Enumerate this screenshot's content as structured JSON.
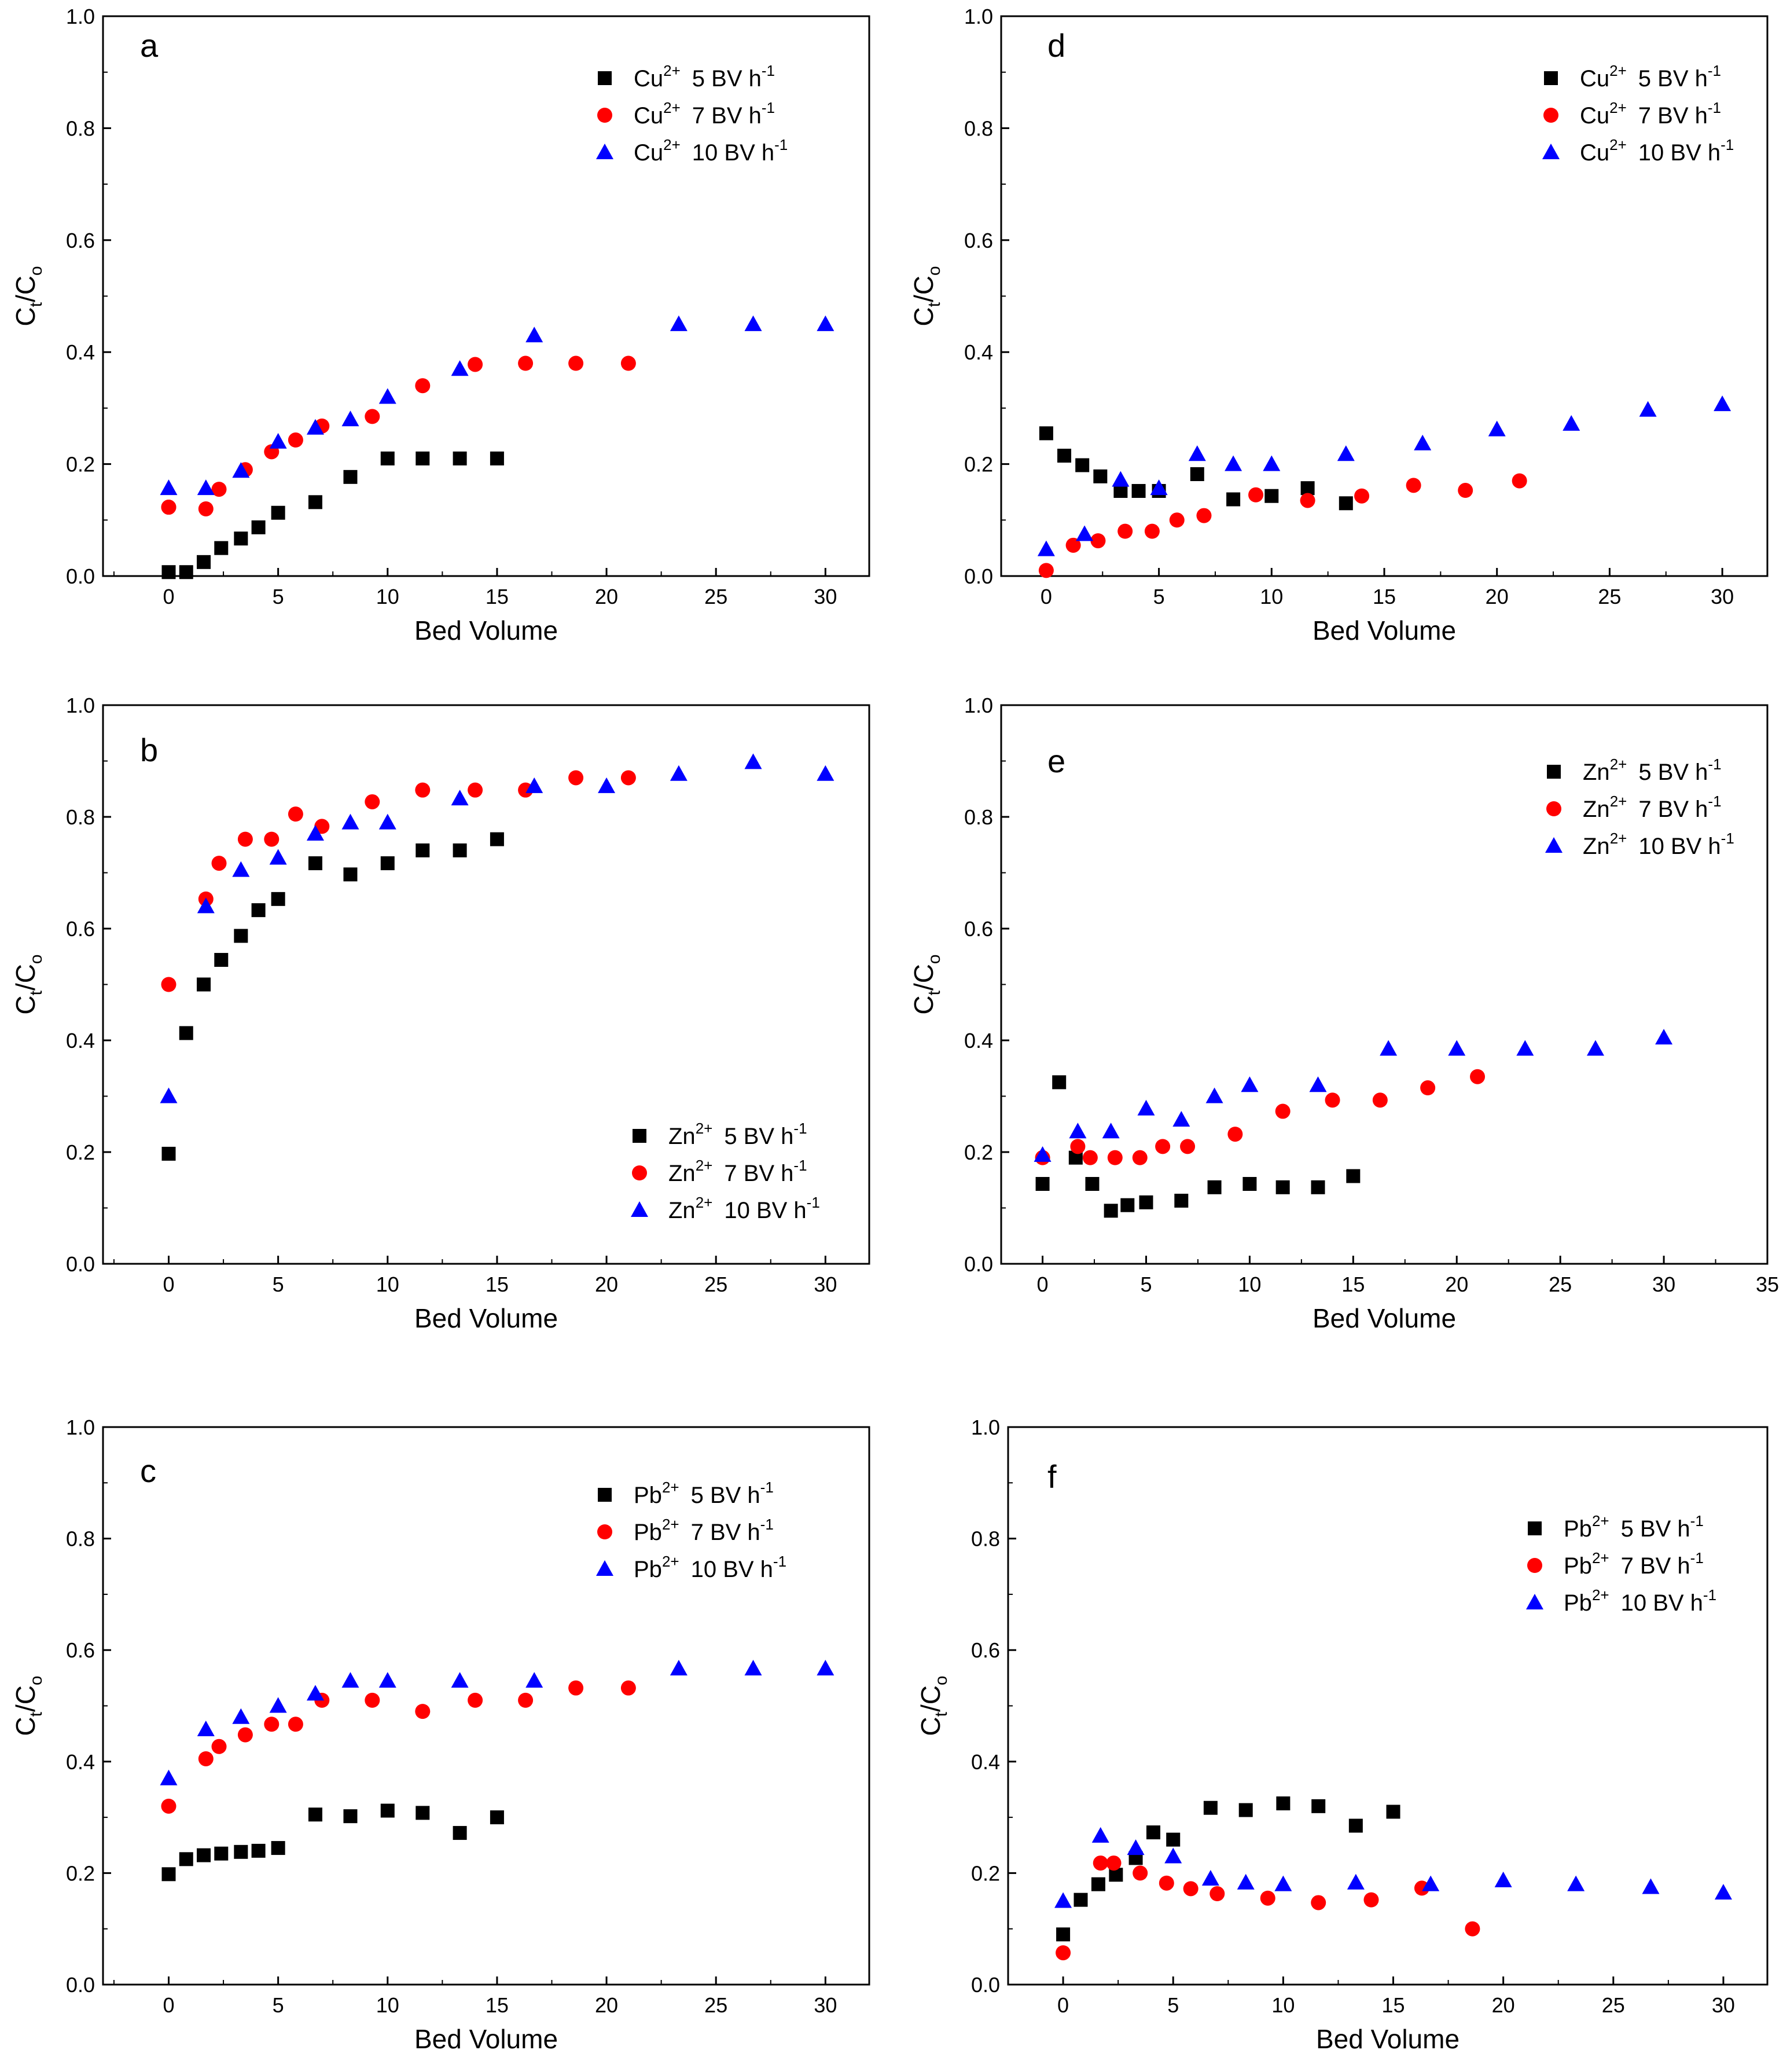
{
  "figure": {
    "ylabel": "Ct/Co",
    "ylabel_main": "C",
    "ylabel_sub_t": "t",
    "ylabel_slash": "/C",
    "ylabel_sub_o": "o",
    "xlabel": "Bed Volume"
  },
  "colors": {
    "5": "#000000",
    "7": "#ff0000",
    "10": "#0000ff"
  },
  "chart_data": [
    {
      "type": "scatter",
      "label": "a",
      "xlabel": "Bed Volume",
      "ylabel": "Ct/Co",
      "xlim": [
        -3,
        32
      ],
      "ylim": [
        0,
        1.0
      ],
      "xticks": [
        "0",
        "5",
        "10",
        "15",
        "20",
        "25",
        "30"
      ],
      "yticks": [
        "0.0",
        "0.2",
        "0.4",
        "0.6",
        "0.8",
        "1.0"
      ],
      "legend_position": "top-right",
      "series": [
        {
          "name": "Cu2+ 5 BV h-1",
          "ion": "Cu",
          "rate": "5",
          "marker": "square",
          "x": [
            0,
            0.8,
            1.6,
            2.4,
            3.3,
            4.1,
            5,
            6.7,
            8.3,
            10,
            11.6,
            13.3,
            15
          ],
          "y": [
            0.007,
            0.007,
            0.025,
            0.05,
            0.067,
            0.087,
            0.113,
            0.132,
            0.177,
            0.21,
            0.21,
            0.21,
            0.21
          ]
        },
        {
          "name": "Cu2+ 7 BV h-1",
          "ion": "Cu",
          "rate": "7",
          "marker": "circle",
          "x": [
            0,
            0,
            1.7,
            2.3,
            3.5,
            4.7,
            5.8,
            7,
            9.3,
            11.6,
            14,
            16.3,
            18.6,
            21
          ],
          "y": [
            0.123,
            0.123,
            0.12,
            0.155,
            0.19,
            0.222,
            0.243,
            0.268,
            0.285,
            0.34,
            0.378,
            0.38,
            0.38,
            0.38
          ]
        },
        {
          "name": "Cu2+ 10 BV h-1",
          "ion": "Cu",
          "rate": "10",
          "marker": "triangle",
          "x": [
            0,
            1.7,
            3.3,
            5,
            6.7,
            8.3,
            10,
            13.3,
            16.7,
            23.3,
            26.7,
            30
          ],
          "y": [
            0.157,
            0.157,
            0.188,
            0.24,
            0.265,
            0.28,
            0.32,
            0.37,
            0.43,
            0.45,
            0.45,
            0.45
          ]
        }
      ],
      "legend": [
        "5  BV h",
        "7  BV h",
        "10 BV h"
      ]
    },
    {
      "type": "scatter",
      "label": "b",
      "xlabel": "Bed Volume",
      "ylabel": "Ct/Co",
      "xlim": [
        -3,
        32
      ],
      "ylim": [
        0,
        1.0
      ],
      "xticks": [
        "0",
        "5",
        "10",
        "15",
        "20",
        "25",
        "30"
      ],
      "yticks": [
        "0.0",
        "0.2",
        "0.4",
        "0.6",
        "0.8",
        "1.0"
      ],
      "legend_position": "bottom-right",
      "series": [
        {
          "name": "Zn2+ 5 BV h-1",
          "ion": "Zn",
          "rate": "5",
          "marker": "square",
          "x": [
            0,
            0.8,
            1.6,
            2.4,
            3.3,
            4.1,
            5,
            6.7,
            8.3,
            10,
            11.6,
            13.3,
            15
          ],
          "y": [
            0.197,
            0.413,
            0.5,
            0.544,
            0.587,
            0.633,
            0.653,
            0.717,
            0.697,
            0.717,
            0.74,
            0.74,
            0.76
          ]
        },
        {
          "name": "Zn2+ 7 BV h-1",
          "ion": "Zn",
          "rate": "7",
          "marker": "circle",
          "x": [
            0,
            1.7,
            2.3,
            3.5,
            4.7,
            5.8,
            7,
            9.3,
            11.6,
            14,
            16.3,
            18.6,
            21
          ],
          "y": [
            0.5,
            0.653,
            0.717,
            0.76,
            0.76,
            0.805,
            0.783,
            0.827,
            0.848,
            0.848,
            0.848,
            0.87,
            0.87
          ]
        },
        {
          "name": "Zn2+ 10 BV h-1",
          "ion": "Zn",
          "rate": "10",
          "marker": "triangle",
          "x": [
            0,
            1.7,
            3.3,
            5,
            6.7,
            8.3,
            10,
            13.3,
            16.7,
            20,
            23.3,
            26.7,
            30
          ],
          "y": [
            0.3,
            0.64,
            0.705,
            0.727,
            0.77,
            0.79,
            0.79,
            0.833,
            0.855,
            0.855,
            0.877,
            0.898,
            0.877
          ]
        }
      ],
      "legend": [
        "5  BV h",
        "7  BV h",
        "10 BV h"
      ]
    },
    {
      "type": "scatter",
      "label": "c",
      "xlabel": "Bed Volume",
      "ylabel": "Ct/Co",
      "xlim": [
        -3,
        32
      ],
      "ylim": [
        0,
        1.0
      ],
      "xticks": [
        "0",
        "5",
        "10",
        "15",
        "20",
        "25",
        "30"
      ],
      "yticks": [
        "0.0",
        "0.2",
        "0.4",
        "0.6",
        "0.8",
        "1.0"
      ],
      "legend_position": "top-right",
      "series": [
        {
          "name": "Pb2+ 5 BV h-1",
          "ion": "Pb",
          "rate": "5",
          "marker": "square",
          "x": [
            0,
            0.8,
            1.6,
            2.4,
            3.3,
            4.1,
            5,
            6.7,
            8.3,
            10,
            11.6,
            13.3,
            15
          ],
          "y": [
            0.198,
            0.225,
            0.232,
            0.235,
            0.238,
            0.24,
            0.245,
            0.305,
            0.302,
            0.312,
            0.308,
            0.272,
            0.3
          ]
        },
        {
          "name": "Pb2+ 7 BV h-1",
          "ion": "Pb",
          "rate": "7",
          "marker": "circle",
          "x": [
            0,
            1.7,
            2.3,
            3.5,
            4.7,
            5.8,
            7,
            9.3,
            11.6,
            14,
            16.3,
            18.6,
            21
          ],
          "y": [
            0.32,
            0.405,
            0.427,
            0.448,
            0.467,
            0.467,
            0.51,
            0.51,
            0.49,
            0.51,
            0.51,
            0.532,
            0.532
          ]
        },
        {
          "name": "Pb2+ 10 BV h-1",
          "ion": "Pb",
          "rate": "10",
          "marker": "triangle",
          "x": [
            0,
            1.7,
            3.3,
            5,
            6.7,
            8.3,
            10,
            13.3,
            16.7,
            23.3,
            26.7,
            30
          ],
          "y": [
            0.37,
            0.458,
            0.48,
            0.5,
            0.522,
            0.545,
            0.545,
            0.545,
            0.545,
            0.567,
            0.567,
            0.567
          ]
        }
      ],
      "legend": [
        "5  BV h",
        "7  BV h",
        "10 BV h"
      ]
    },
    {
      "type": "scatter",
      "label": "d",
      "xlabel": "Bed Volume",
      "ylabel": "Ct/Co",
      "xlim": [
        -2,
        32
      ],
      "ylim": [
        0,
        1.0
      ],
      "xticks": [
        "0",
        "5",
        "10",
        "15",
        "20",
        "25",
        "30"
      ],
      "yticks": [
        "0.0",
        "0.2",
        "0.4",
        "0.6",
        "0.8",
        "1.0"
      ],
      "legend_position": "top-right",
      "series": [
        {
          "name": "Cu2+ 5 BV h-1",
          "ion": "Cu",
          "rate": "5",
          "marker": "square",
          "x": [
            0,
            0.8,
            1.6,
            2.4,
            3.3,
            4.1,
            5,
            6.7,
            8.3,
            10,
            11.6,
            13.3
          ],
          "y": [
            0.255,
            0.215,
            0.198,
            0.178,
            0.152,
            0.152,
            0.152,
            0.182,
            0.137,
            0.143,
            0.157,
            0.13
          ]
        },
        {
          "name": "Cu2+ 7 BV h-1",
          "ion": "Cu",
          "rate": "7",
          "marker": "circle",
          "x": [
            0,
            1.2,
            2.3,
            3.5,
            4.7,
            5.8,
            7,
            9.3,
            11.6,
            14,
            16.3,
            18.6,
            21
          ],
          "y": [
            0.01,
            0.055,
            0.063,
            0.08,
            0.08,
            0.1,
            0.108,
            0.145,
            0.135,
            0.143,
            0.162,
            0.153,
            0.17
          ]
        },
        {
          "name": "Cu2+ 10 BV h-1",
          "ion": "Cu",
          "rate": "10",
          "marker": "triangle",
          "x": [
            0,
            1.7,
            3.3,
            5,
            6.7,
            8.3,
            10,
            13.3,
            16.7,
            20,
            23.3,
            26.7,
            30
          ],
          "y": [
            0.048,
            0.075,
            0.172,
            0.157,
            0.218,
            0.2,
            0.2,
            0.218,
            0.237,
            0.262,
            0.272,
            0.297,
            0.307
          ]
        }
      ],
      "legend": [
        "5  BV h",
        "7  BV h",
        "10 BV h"
      ]
    },
    {
      "type": "scatter",
      "label": "e",
      "xlabel": "Bed Volume",
      "ylabel": "Ct/Co",
      "xlim": [
        -2,
        35
      ],
      "ylim": [
        0,
        1.0
      ],
      "xticks": [
        "0",
        "5",
        "10",
        "15",
        "20",
        "25",
        "30",
        "35"
      ],
      "yticks": [
        "0.0",
        "0.2",
        "0.4",
        "0.6",
        "0.8",
        "1.0"
      ],
      "legend_position": "top-right",
      "series": [
        {
          "name": "Zn2+ 5 BV h-1",
          "ion": "Zn",
          "rate": "5",
          "marker": "square",
          "x": [
            0,
            0.8,
            1.6,
            2.4,
            3.3,
            4.1,
            5,
            6.7,
            8.3,
            10,
            11.6,
            13.3,
            15
          ],
          "y": [
            0.143,
            0.325,
            0.19,
            0.143,
            0.095,
            0.105,
            0.11,
            0.113,
            0.137,
            0.143,
            0.137,
            0.137,
            0.157
          ]
        },
        {
          "name": "Zn2+ 7 BV h-1",
          "ion": "Zn",
          "rate": "7",
          "marker": "circle",
          "x": [
            0,
            1.7,
            2.3,
            3.5,
            4.7,
            5.8,
            7,
            9.3,
            11.6,
            14,
            16.3,
            18.6,
            21
          ],
          "y": [
            0.19,
            0.21,
            0.19,
            0.19,
            0.19,
            0.21,
            0.21,
            0.232,
            0.273,
            0.293,
            0.293,
            0.315,
            0.335
          ]
        },
        {
          "name": "Zn2+ 10 BV h-1",
          "ion": "Zn",
          "rate": "10",
          "marker": "triangle",
          "x": [
            0,
            1.7,
            3.3,
            5,
            6.7,
            8.3,
            10,
            13.3,
            16.7,
            20,
            23.3,
            26.7,
            30
          ],
          "y": [
            0.195,
            0.237,
            0.237,
            0.278,
            0.258,
            0.3,
            0.32,
            0.32,
            0.385,
            0.385,
            0.385,
            0.385,
            0.405
          ]
        }
      ],
      "legend": [
        "5  BV h",
        "7  BV h",
        "10 BV h"
      ]
    },
    {
      "type": "scatter",
      "label": "f",
      "xlabel": "Bed Volume",
      "ylabel": "Ct/Co",
      "xlim": [
        -2.5,
        32
      ],
      "ylim": [
        0,
        1.0
      ],
      "xticks": [
        "0",
        "5",
        "10",
        "15",
        "20",
        "25",
        "30"
      ],
      "yticks": [
        "0.0",
        "0.2",
        "0.4",
        "0.6",
        "0.8",
        "1.0"
      ],
      "legend_position": "top-right",
      "series": [
        {
          "name": "Pb2+ 5 BV h-1",
          "ion": "Pb",
          "rate": "5",
          "marker": "square",
          "x": [
            0,
            0.8,
            1.6,
            2.4,
            3.3,
            4.1,
            5,
            6.7,
            8.3,
            10,
            11.6,
            13.3,
            15
          ],
          "y": [
            0.09,
            0.152,
            0.18,
            0.197,
            0.227,
            0.273,
            0.26,
            0.317,
            0.313,
            0.325,
            0.32,
            0.285,
            0.31
          ]
        },
        {
          "name": "Pb2+ 7 BV h-1",
          "ion": "Pb",
          "rate": "7",
          "marker": "circle",
          "x": [
            0,
            1.7,
            2.3,
            3.5,
            4.7,
            5.8,
            7,
            9.3,
            11.6,
            14,
            16.3,
            18.6
          ],
          "y": [
            0.057,
            0.218,
            0.218,
            0.2,
            0.182,
            0.172,
            0.163,
            0.155,
            0.147,
            0.152,
            0.173,
            0.1
          ]
        },
        {
          "name": "Pb2+ 10 BV h-1",
          "ion": "Pb",
          "rate": "10",
          "marker": "triangle",
          "x": [
            0,
            1.7,
            3.3,
            5,
            6.7,
            8.3,
            10,
            13.3,
            16.7,
            20,
            23.3,
            26.7,
            30
          ],
          "y": [
            0.15,
            0.267,
            0.245,
            0.23,
            0.19,
            0.183,
            0.18,
            0.183,
            0.18,
            0.187,
            0.18,
            0.175,
            0.165
          ]
        }
      ],
      "legend": [
        "5  BV h",
        "7  BV h",
        "10 BV h"
      ]
    }
  ]
}
